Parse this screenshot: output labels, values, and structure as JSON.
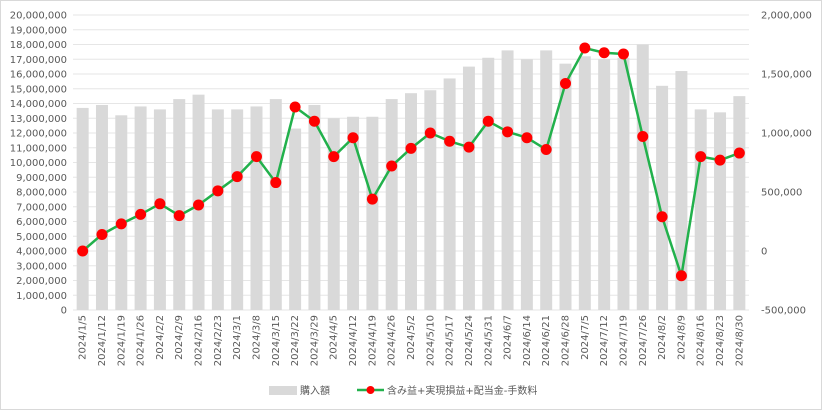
{
  "chart_data": {
    "type": "bar+line",
    "title": "",
    "colors": {
      "bar": "#d9d9d9",
      "line": "#22b14c",
      "marker": "#ff0000",
      "grid": "#e6e6e6"
    },
    "categories": [
      "2024/1/5",
      "2024/1/12",
      "2024/1/19",
      "2024/1/26",
      "2024/2/2",
      "2024/2/9",
      "2024/2/16",
      "2024/2/23",
      "2024/3/1",
      "2024/3/8",
      "2024/3/15",
      "2024/3/22",
      "2024/3/29",
      "2024/4/5",
      "2024/4/12",
      "2024/4/19",
      "2024/4/26",
      "2024/5/2",
      "2024/5/10",
      "2024/5/17",
      "2024/5/24",
      "2024/5/31",
      "2024/6/7",
      "2024/6/14",
      "2024/6/21",
      "2024/6/28",
      "2024/7/5",
      "2024/7/12",
      "2024/7/19",
      "2024/7/26",
      "2024/8/2",
      "2024/8/9",
      "2024/8/16",
      "2024/8/23",
      "2024/8/30"
    ],
    "left_axis": {
      "min": 0,
      "max": 20000000,
      "step": 1000000,
      "tick_labels": [
        "0",
        "1,000,000",
        "2,000,000",
        "3,000,000",
        "4,000,000",
        "5,000,000",
        "6,000,000",
        "7,000,000",
        "8,000,000",
        "9,000,000",
        "10,000,000",
        "11,000,000",
        "12,000,000",
        "13,000,000",
        "14,000,000",
        "15,000,000",
        "16,000,000",
        "17,000,000",
        "18,000,000",
        "19,000,000",
        "20,000,000"
      ]
    },
    "right_axis": {
      "min": -500000,
      "max": 2000000,
      "step": 500000,
      "tick_labels": [
        "-500,000",
        "0",
        "500,000",
        "1,000,000",
        "1,500,000",
        "2,000,000"
      ]
    },
    "series": [
      {
        "name": "購入額",
        "type": "bar",
        "axis": "left",
        "values": [
          13700000,
          13900000,
          13200000,
          13800000,
          13600000,
          14300000,
          14600000,
          13600000,
          13600000,
          13800000,
          14300000,
          12300000,
          13900000,
          13000000,
          13100000,
          13100000,
          14300000,
          14700000,
          14900000,
          15700000,
          16500000,
          17100000,
          17600000,
          17000000,
          17600000,
          16700000,
          17200000,
          17000000,
          17100000,
          18000000,
          15200000,
          16200000,
          13600000,
          13400000,
          14500000
        ]
      },
      {
        "name": "含み益+実現損益+配当金-手数料",
        "type": "line",
        "axis": "right",
        "values": [
          0,
          140000,
          230000,
          310000,
          400000,
          300000,
          390000,
          510000,
          630000,
          800000,
          580000,
          1220000,
          1100000,
          800000,
          960000,
          440000,
          720000,
          870000,
          1000000,
          930000,
          880000,
          1100000,
          1010000,
          960000,
          860000,
          1420000,
          1720000,
          1680000,
          1670000,
          970000,
          290000,
          -210000,
          800000,
          770000,
          830000
        ]
      }
    ],
    "legend": {
      "placement": "bottom-center"
    }
  }
}
